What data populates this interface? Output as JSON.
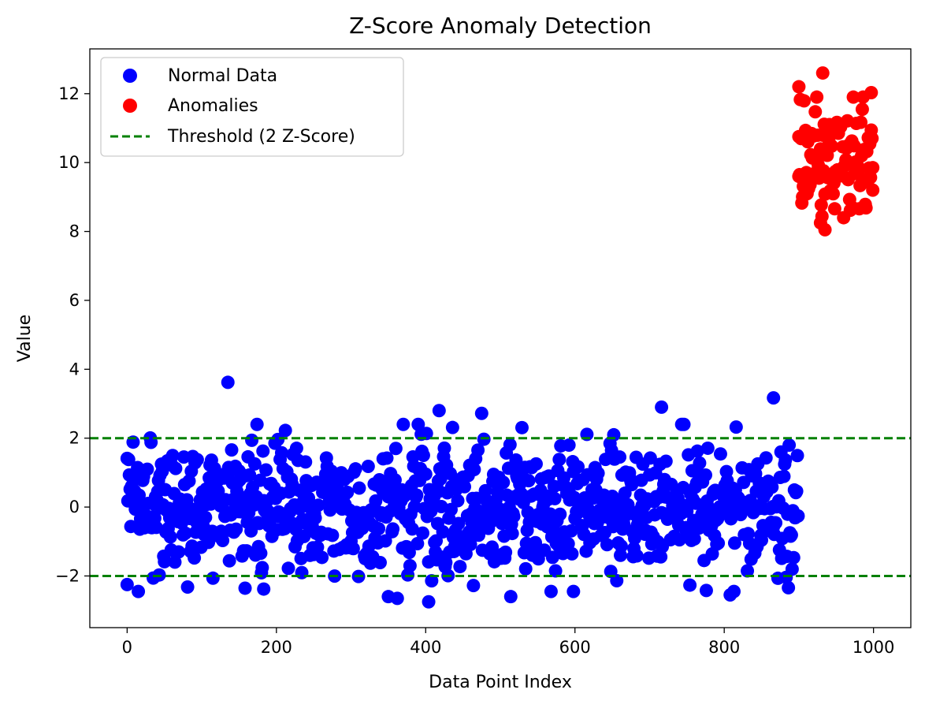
{
  "chart_data": {
    "type": "scatter",
    "title": "Z-Score Anomaly Detection",
    "xlabel": "Data Point Index",
    "ylabel": "Value",
    "xlim": [
      -50,
      1050
    ],
    "ylim": [
      -3.5,
      13.3
    ],
    "xticks": [
      0,
      200,
      400,
      600,
      800,
      1000
    ],
    "xtick_labels": [
      "0",
      "200",
      "400",
      "600",
      "800",
      "1000"
    ],
    "yticks": [
      -2,
      0,
      2,
      4,
      6,
      8,
      10,
      12
    ],
    "ytick_labels": [
      "−2",
      "0",
      "2",
      "4",
      "6",
      "8",
      "10",
      "12"
    ],
    "grid": false,
    "legend_position": "top-left",
    "thresholds": [
      {
        "name": "Threshold (2 Z-Score)",
        "y": 2,
        "color": "#008000",
        "style": "dashed"
      },
      {
        "y": -2,
        "color": "#008000",
        "style": "dashed"
      }
    ],
    "series": [
      {
        "name": "Normal Data",
        "color": "#0000ff",
        "index_range": [
          0,
          899
        ],
        "distribution": {
          "mean": 0,
          "std": 1
        },
        "notable_points": [
          {
            "x": 135,
            "y": 3.62
          },
          {
            "x": 716,
            "y": 2.9
          },
          {
            "x": 866,
            "y": 3.17
          },
          {
            "x": 418,
            "y": 2.8
          },
          {
            "x": 475,
            "y": 2.72
          },
          {
            "x": 404,
            "y": -2.75
          },
          {
            "x": 183,
            "y": -2.38
          },
          {
            "x": 808,
            "y": -2.55
          },
          {
            "x": 514,
            "y": -2.6
          },
          {
            "x": 362,
            "y": -2.65
          },
          {
            "x": 350,
            "y": -2.6
          },
          {
            "x": 0,
            "y": -2.25
          },
          {
            "x": 598,
            "y": -2.45
          }
        ]
      },
      {
        "name": "Anomalies",
        "color": "#ff0000",
        "index_range": [
          900,
          999
        ],
        "distribution": {
          "mean": 10,
          "std": 1
        },
        "notable_points": [
          {
            "x": 932,
            "y": 12.6
          },
          {
            "x": 900,
            "y": 12.2
          },
          {
            "x": 997,
            "y": 12.03
          },
          {
            "x": 935,
            "y": 8.05
          },
          {
            "x": 929,
            "y": 8.25
          },
          {
            "x": 900,
            "y": 9.6
          },
          {
            "x": 999,
            "y": 9.2
          }
        ]
      }
    ]
  }
}
